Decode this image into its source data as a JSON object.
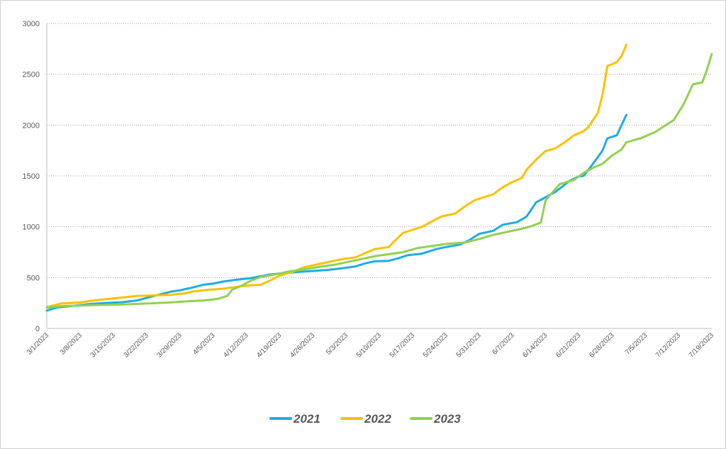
{
  "chart_data": {
    "type": "line",
    "title": "",
    "xlabel": "",
    "ylabel": "",
    "ylim": [
      0,
      3000
    ],
    "yticks": [
      0,
      500,
      1000,
      1500,
      2000,
      2500,
      3000
    ],
    "x_range_dates": [
      "3/1/2023",
      "7/19/2023"
    ],
    "x_tick_labels": [
      "3/1/2023",
      "3/8/2023",
      "3/15/2023",
      "3/22/2023",
      "3/29/2023",
      "4/5/2023",
      "4/12/2023",
      "4/19/2023",
      "4/26/2023",
      "5/3/2023",
      "5/10/2023",
      "5/17/2023",
      "5/24/2023",
      "5/31/2023",
      "6/7/2023",
      "6/14/2023",
      "6/21/2023",
      "6/28/2023",
      "7/5/2023",
      "7/12/2023",
      "7/19/2023"
    ],
    "grid": "horizontal",
    "legend_position": "bottom",
    "series": [
      {
        "name": "2021",
        "color": "#1CADE4",
        "points": [
          [
            "3/1/2023",
            175
          ],
          [
            "3/3/2023",
            205
          ],
          [
            "3/6/2023",
            220
          ],
          [
            "3/10/2023",
            240
          ],
          [
            "3/13/2023",
            250
          ],
          [
            "3/17/2023",
            258
          ],
          [
            "3/20/2023",
            275
          ],
          [
            "3/22/2023",
            300
          ],
          [
            "3/24/2023",
            325
          ],
          [
            "3/27/2023",
            360
          ],
          [
            "3/29/2023",
            375
          ],
          [
            "3/31/2023",
            395
          ],
          [
            "4/3/2023",
            430
          ],
          [
            "4/5/2023",
            440
          ],
          [
            "4/7/2023",
            460
          ],
          [
            "4/10/2023",
            480
          ],
          [
            "4/13/2023",
            495
          ],
          [
            "4/17/2023",
            530
          ],
          [
            "4/19/2023",
            540
          ],
          [
            "4/23/2023",
            555
          ],
          [
            "4/26/2023",
            565
          ],
          [
            "4/29/2023",
            575
          ],
          [
            "5/2/2023",
            590
          ],
          [
            "5/5/2023",
            610
          ],
          [
            "5/7/2023",
            640
          ],
          [
            "5/9/2023",
            660
          ],
          [
            "5/12/2023",
            665
          ],
          [
            "5/14/2023",
            690
          ],
          [
            "5/16/2023",
            720
          ],
          [
            "5/19/2023",
            735
          ],
          [
            "5/22/2023",
            780
          ],
          [
            "5/24/2023",
            800
          ],
          [
            "5/27/2023",
            825
          ],
          [
            "5/29/2023",
            870
          ],
          [
            "5/31/2023",
            930
          ],
          [
            "6/3/2023",
            960
          ],
          [
            "6/5/2023",
            1020
          ],
          [
            "6/8/2023",
            1045
          ],
          [
            "6/10/2023",
            1100
          ],
          [
            "6/12/2023",
            1240
          ],
          [
            "6/14/2023",
            1290
          ],
          [
            "6/16/2023",
            1340
          ],
          [
            "6/19/2023",
            1450
          ],
          [
            "6/21/2023",
            1495
          ],
          [
            "6/22/2023",
            1500
          ],
          [
            "6/24/2023",
            1620
          ],
          [
            "6/26/2023",
            1750
          ],
          [
            "6/27/2023",
            1870
          ],
          [
            "6/29/2023",
            1900
          ],
          [
            "6/30/2023",
            2000
          ],
          [
            "7/1/2023",
            2100
          ]
        ]
      },
      {
        "name": "2022",
        "color": "#FFC000",
        "points": [
          [
            "3/1/2023",
            210
          ],
          [
            "3/4/2023",
            245
          ],
          [
            "3/8/2023",
            255
          ],
          [
            "3/10/2023",
            270
          ],
          [
            "3/13/2023",
            285
          ],
          [
            "3/15/2023",
            295
          ],
          [
            "3/18/2023",
            310
          ],
          [
            "3/20/2023",
            320
          ],
          [
            "3/24/2023",
            325
          ],
          [
            "3/27/2023",
            330
          ],
          [
            "3/30/2023",
            345
          ],
          [
            "4/1/2023",
            365
          ],
          [
            "4/4/2023",
            380
          ],
          [
            "4/7/2023",
            390
          ],
          [
            "4/10/2023",
            410
          ],
          [
            "4/13/2023",
            425
          ],
          [
            "4/15/2023",
            430
          ],
          [
            "4/17/2023",
            470
          ],
          [
            "4/19/2023",
            520
          ],
          [
            "4/22/2023",
            560
          ],
          [
            "4/24/2023",
            600
          ],
          [
            "4/26/2023",
            620
          ],
          [
            "4/29/2023",
            650
          ],
          [
            "5/2/2023",
            680
          ],
          [
            "5/5/2023",
            700
          ],
          [
            "5/7/2023",
            740
          ],
          [
            "5/9/2023",
            780
          ],
          [
            "5/12/2023",
            800
          ],
          [
            "5/13/2023",
            850
          ],
          [
            "5/15/2023",
            940
          ],
          [
            "5/17/2023",
            970
          ],
          [
            "5/19/2023",
            1000
          ],
          [
            "5/21/2023",
            1050
          ],
          [
            "5/23/2023",
            1100
          ],
          [
            "5/26/2023",
            1130
          ],
          [
            "5/28/2023",
            1200
          ],
          [
            "5/30/2023",
            1260
          ],
          [
            "6/1/2023",
            1290
          ],
          [
            "6/3/2023",
            1320
          ],
          [
            "6/5/2023",
            1390
          ],
          [
            "6/7/2023",
            1440
          ],
          [
            "6/9/2023",
            1480
          ],
          [
            "6/10/2023",
            1560
          ],
          [
            "6/12/2023",
            1660
          ],
          [
            "6/14/2023",
            1745
          ],
          [
            "6/16/2023",
            1770
          ],
          [
            "6/18/2023",
            1830
          ],
          [
            "6/20/2023",
            1900
          ],
          [
            "6/22/2023",
            1940
          ],
          [
            "6/23/2023",
            1980
          ],
          [
            "6/25/2023",
            2120
          ],
          [
            "6/26/2023",
            2300
          ],
          [
            "6/27/2023",
            2580
          ],
          [
            "6/29/2023",
            2620
          ],
          [
            "6/30/2023",
            2680
          ],
          [
            "7/1/2023",
            2790
          ]
        ]
      },
      {
        "name": "2023",
        "color": "#92D050",
        "points": [
          [
            "3/1/2023",
            205
          ],
          [
            "3/4/2023",
            220
          ],
          [
            "3/8/2023",
            225
          ],
          [
            "3/12/2023",
            230
          ],
          [
            "3/17/2023",
            235
          ],
          [
            "3/22/2023",
            245
          ],
          [
            "3/27/2023",
            255
          ],
          [
            "3/30/2023",
            265
          ],
          [
            "4/3/2023",
            275
          ],
          [
            "4/6/2023",
            290
          ],
          [
            "4/8/2023",
            320
          ],
          [
            "4/9/2023",
            380
          ],
          [
            "4/11/2023",
            420
          ],
          [
            "4/13/2023",
            470
          ],
          [
            "4/15/2023",
            505
          ],
          [
            "4/18/2023",
            530
          ],
          [
            "4/21/2023",
            560
          ],
          [
            "4/24/2023",
            580
          ],
          [
            "4/28/2023",
            610
          ],
          [
            "5/1/2023",
            630
          ],
          [
            "5/3/2023",
            650
          ],
          [
            "5/6/2023",
            680
          ],
          [
            "5/9/2023",
            710
          ],
          [
            "5/12/2023",
            730
          ],
          [
            "5/15/2023",
            750
          ],
          [
            "5/18/2023",
            790
          ],
          [
            "5/21/2023",
            810
          ],
          [
            "5/24/2023",
            830
          ],
          [
            "5/28/2023",
            845
          ],
          [
            "5/31/2023",
            880
          ],
          [
            "6/3/2023",
            920
          ],
          [
            "6/6/2023",
            950
          ],
          [
            "6/9/2023",
            980
          ],
          [
            "6/11/2023",
            1005
          ],
          [
            "6/13/2023",
            1040
          ],
          [
            "6/14/2023",
            1260
          ],
          [
            "6/17/2023",
            1420
          ],
          [
            "6/20/2023",
            1460
          ],
          [
            "6/22/2023",
            1530
          ],
          [
            "6/24/2023",
            1580
          ],
          [
            "6/26/2023",
            1620
          ],
          [
            "6/28/2023",
            1700
          ],
          [
            "6/30/2023",
            1760
          ],
          [
            "7/1/2023",
            1830
          ],
          [
            "7/4/2023",
            1870
          ],
          [
            "7/7/2023",
            1930
          ],
          [
            "7/9/2023",
            1990
          ],
          [
            "7/11/2023",
            2050
          ],
          [
            "7/13/2023",
            2200
          ],
          [
            "7/15/2023",
            2400
          ],
          [
            "7/17/2023",
            2420
          ],
          [
            "7/18/2023",
            2550
          ],
          [
            "7/19/2023",
            2700
          ]
        ]
      }
    ]
  }
}
